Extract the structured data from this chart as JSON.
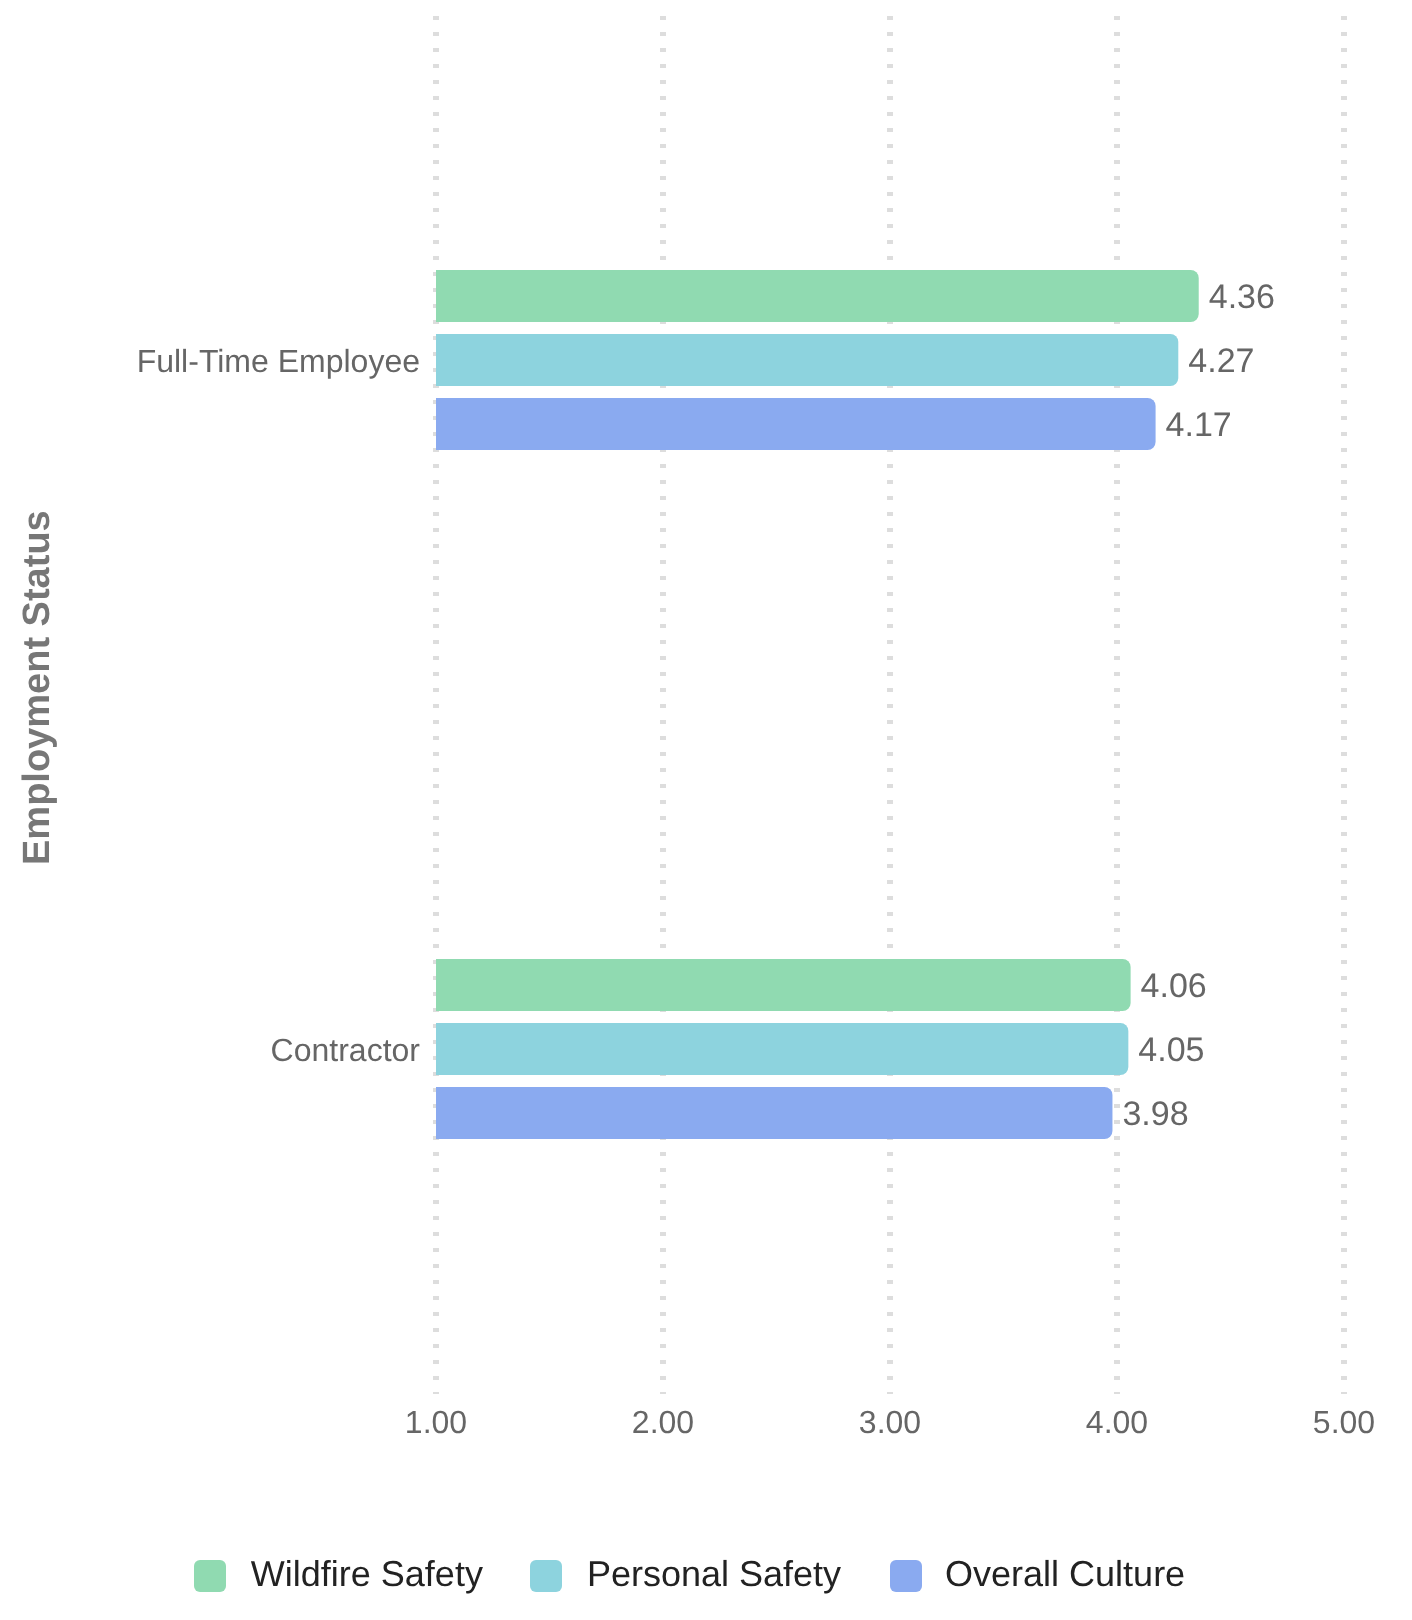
{
  "chart_data": {
    "type": "bar",
    "orientation": "horizontal",
    "ylabel": "Employment Status",
    "categories": [
      "Full-Time Employee",
      "Contractor"
    ],
    "series": [
      {
        "name": "Wildfire Safety",
        "color": "#90dab1",
        "values": [
          4.36,
          4.06
        ]
      },
      {
        "name": "Personal Safety",
        "color": "#8dd3de",
        "values": [
          4.27,
          4.05
        ]
      },
      {
        "name": "Overall Culture",
        "color": "#8aaaf0",
        "values": [
          4.17,
          3.98
        ]
      }
    ],
    "xlim": [
      1,
      5
    ],
    "xticks": [
      {
        "value": 1,
        "label": "1.00"
      },
      {
        "value": 2,
        "label": "2.00"
      },
      {
        "value": 3,
        "label": "3.00"
      },
      {
        "value": 4,
        "label": "4.00"
      },
      {
        "value": 5,
        "label": "5.00"
      }
    ],
    "grid": "x",
    "legend": "bottom",
    "data_labels": true
  }
}
